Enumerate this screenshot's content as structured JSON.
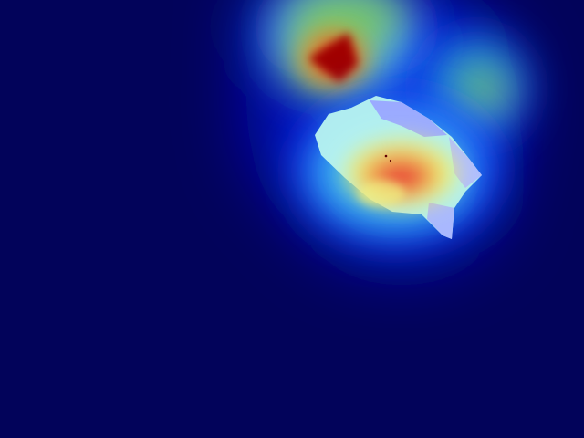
{
  "image": {
    "kind": "heatmap overlay (jet colormap) on dark navy background",
    "colors": {
      "background": "#02035a",
      "deep_blue": "#0000b4",
      "blue": "#1a3cff",
      "cyan": "#40e0e0",
      "green_yellow": "#a8d040",
      "yellow": "#f0e040",
      "orange": "#f08040",
      "red": "#e02020",
      "dark_red": "#a00000",
      "lavender_patch": "#9aa6ff",
      "pale_cyan_patch": "#b8f4f0"
    },
    "regions": [
      {
        "name": "upper-hotspot",
        "peak_color": "#a00000"
      },
      {
        "name": "right-faint-blob",
        "peak_color": "#60b040"
      },
      {
        "name": "central-overexposed-patch",
        "peak_color": "#e03030"
      }
    ]
  }
}
